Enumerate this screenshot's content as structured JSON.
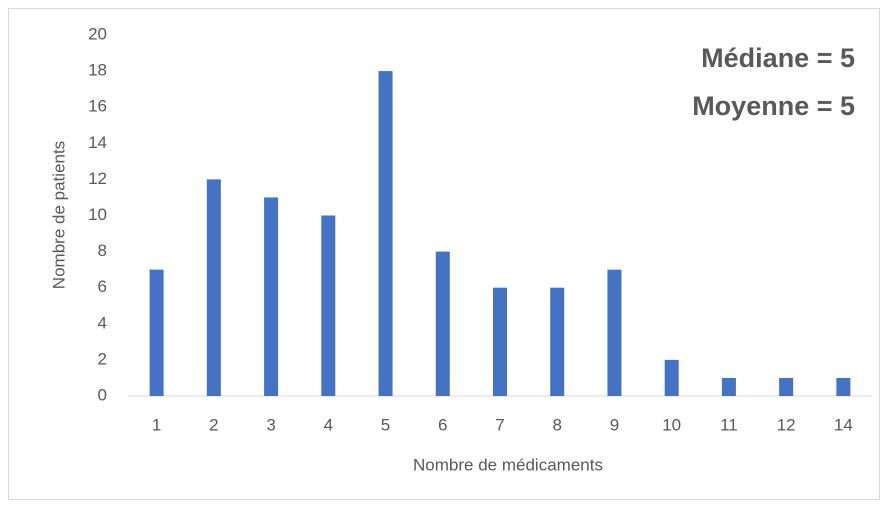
{
  "chart_data": {
    "type": "bar",
    "categories": [
      "1",
      "2",
      "3",
      "4",
      "5",
      "6",
      "7",
      "8",
      "9",
      "10",
      "11",
      "12",
      "14"
    ],
    "values": [
      7,
      12,
      11,
      10,
      18,
      8,
      6,
      6,
      7,
      2,
      1,
      1,
      1
    ],
    "color": "#4472c4",
    "ylim": [
      0,
      20
    ],
    "yticks": [
      0,
      2,
      4,
      6,
      8,
      10,
      12,
      14,
      16,
      18,
      20
    ],
    "grid": false,
    "xlabel": "Nombre de médicaments",
    "ylabel": "Nombre de patients",
    "annotations": [
      "Médiane = 5",
      "Moyenne = 5"
    ]
  }
}
